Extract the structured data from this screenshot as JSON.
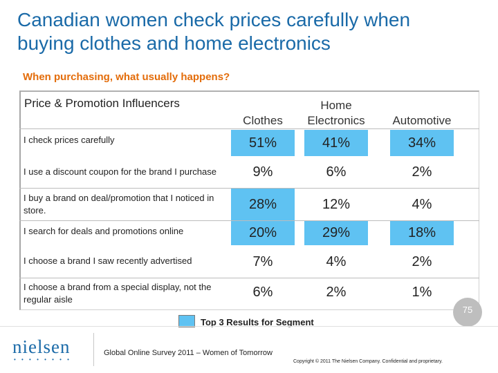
{
  "title": "Canadian women check prices carefully when\nbuying clothes and home electronics",
  "subtitle": "When purchasing, what usually happens?",
  "table": {
    "corner_label": "Price & Promotion Influencers",
    "columns": [
      "Clothes",
      "Home\nElectronics",
      "Automotive"
    ],
    "rows": [
      {
        "label": "I check prices carefully",
        "values": [
          "51%",
          "41%",
          "34%"
        ]
      },
      {
        "label": "I use a discount coupon for the brand I purchase",
        "values": [
          "9%",
          "6%",
          "2%"
        ]
      },
      {
        "label": "I buy a brand on deal/promotion that I noticed in store.",
        "values": [
          "28%",
          "12%",
          "4%"
        ]
      },
      {
        "label": "I search for deals and promotions online",
        "values": [
          "20%",
          "29%",
          "18%"
        ]
      },
      {
        "label": "I choose a brand I saw recently advertised",
        "values": [
          "7%",
          "4%",
          "2%"
        ]
      },
      {
        "label": "I choose a brand from a special display, not the regular aisle",
        "values": [
          "6%",
          "2%",
          "1%"
        ]
      }
    ],
    "highlighted_cells": [
      [
        0,
        0
      ],
      [
        0,
        1
      ],
      [
        0,
        2
      ],
      [
        2,
        0
      ],
      [
        3,
        0
      ],
      [
        3,
        1
      ],
      [
        3,
        2
      ]
    ]
  },
  "legend": {
    "label": "Top 3 Results for Segment",
    "color": "#5fc2f2"
  },
  "page_number": "75",
  "logo": {
    "text": "nielsen",
    "dots": "• • • • • • • •"
  },
  "footer": {
    "source": "Global Online Survey 2011 – Women of Tomorrow",
    "copyright": "Copyright © 2011 The Nielsen Company. Confidential and proprietary."
  }
}
